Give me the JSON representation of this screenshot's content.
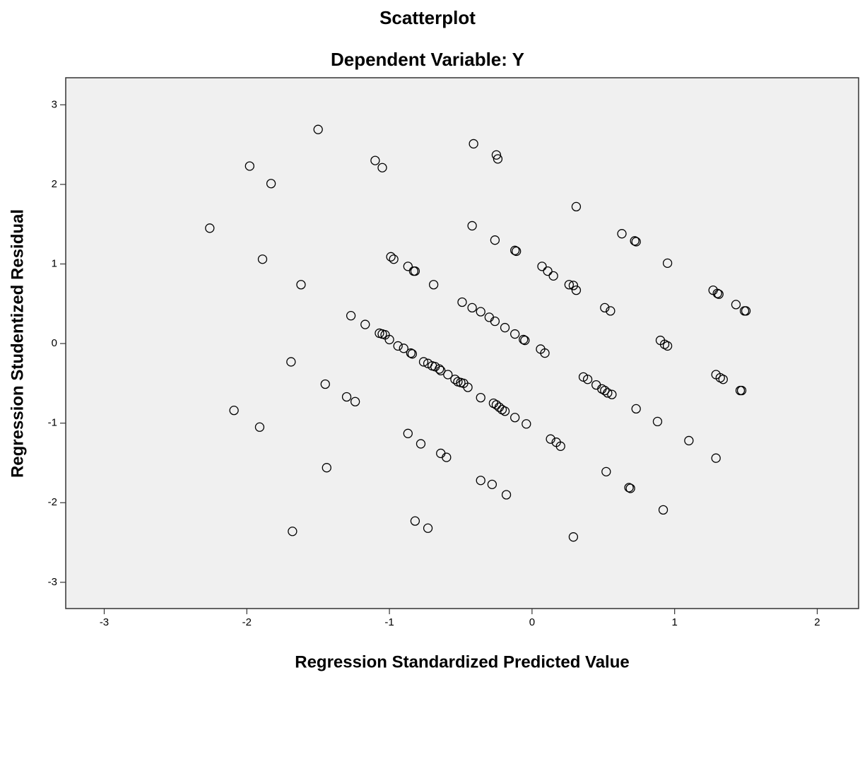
{
  "chart_data": {
    "type": "scatter",
    "title": "Scatterplot",
    "subtitle": "Dependent Variable: Y",
    "x_label": "Regression Standardized Predicted Value",
    "y_label": "Regression Studentized Residual",
    "xlim": [
      -3.27,
      2.29
    ],
    "ylim": [
      -3.33,
      3.34
    ],
    "xticks": [
      -3,
      -2,
      -1,
      0,
      1,
      2
    ],
    "yticks": [
      -3,
      -2,
      -1,
      0,
      1,
      2,
      3
    ],
    "color": "#000000",
    "background": "#f0f0f0",
    "x": [
      -1.5,
      -1.98,
      -1.83,
      -2.26,
      -1.89,
      -1.62,
      -1.1,
      -1.05,
      -0.41,
      -0.25,
      -0.24,
      0.31,
      -0.42,
      -0.26,
      -0.12,
      -0.11,
      0.63,
      0.72,
      0.73,
      0.95,
      -0.99,
      -0.97,
      -0.87,
      -0.83,
      -0.82,
      -0.69,
      0.07,
      0.11,
      0.15,
      0.26,
      0.29,
      0.31,
      0.51,
      0.55,
      1.27,
      1.3,
      1.31,
      1.43,
      1.49,
      1.5,
      -0.49,
      -0.42,
      -0.36,
      -0.3,
      -0.26,
      -0.19,
      -0.12,
      -0.06,
      -0.05,
      0.06,
      0.09,
      0.9,
      0.93,
      0.95,
      -1.27,
      -1.17,
      -1.07,
      -1.05,
      -1.03,
      -1.0,
      -0.94,
      -0.9,
      -0.85,
      -0.84,
      -0.76,
      -0.73,
      -0.7,
      -0.68,
      -0.65,
      -0.64,
      -0.59,
      -0.54,
      -0.52,
      -0.5,
      -0.48,
      -0.45,
      -0.36,
      -0.27,
      -0.25,
      -0.23,
      -0.21,
      -0.19,
      -0.12,
      -0.04,
      0.36,
      0.39,
      0.45,
      0.49,
      0.51,
      0.53,
      0.56,
      0.73,
      0.88,
      1.1,
      1.29,
      1.29,
      1.32,
      1.34,
      1.46,
      1.47,
      -1.69,
      -1.45,
      -1.3,
      -1.24,
      -2.09,
      -1.91,
      -0.87,
      -0.78,
      -0.64,
      -0.6,
      0.13,
      0.17,
      0.2,
      -1.44,
      -0.36,
      -0.28,
      -0.18,
      0.52,
      0.68,
      0.69,
      0.92,
      -1.68,
      -0.82,
      -0.73,
      0.29
    ],
    "values": [
      2.69,
      2.23,
      2.01,
      1.45,
      1.06,
      0.74,
      2.3,
      2.21,
      2.51,
      2.37,
      2.32,
      1.72,
      1.48,
      1.3,
      1.17,
      1.16,
      1.38,
      1.29,
      1.28,
      1.01,
      1.09,
      1.06,
      0.97,
      0.91,
      0.91,
      0.74,
      0.97,
      0.91,
      0.85,
      0.74,
      0.73,
      0.67,
      0.45,
      0.41,
      0.67,
      0.63,
      0.62,
      0.49,
      0.41,
      0.41,
      0.52,
      0.45,
      0.4,
      0.33,
      0.28,
      0.2,
      0.12,
      0.05,
      0.04,
      -0.07,
      -0.12,
      0.04,
      -0.01,
      -0.03,
      0.35,
      0.24,
      0.13,
      0.12,
      0.11,
      0.05,
      -0.03,
      -0.06,
      -0.12,
      -0.13,
      -0.23,
      -0.25,
      -0.28,
      -0.29,
      -0.32,
      -0.34,
      -0.39,
      -0.45,
      -0.48,
      -0.49,
      -0.5,
      -0.55,
      -0.68,
      -0.75,
      -0.77,
      -0.8,
      -0.83,
      -0.85,
      -0.93,
      -1.01,
      -0.42,
      -0.45,
      -0.52,
      -0.57,
      -0.59,
      -0.62,
      -0.64,
      -0.82,
      -0.98,
      -1.22,
      -1.44,
      -0.39,
      -0.43,
      -0.45,
      -0.59,
      -0.59,
      -0.23,
      -0.51,
      -0.67,
      -0.73,
      -0.84,
      -1.05,
      -1.13,
      -1.26,
      -1.38,
      -1.43,
      -1.2,
      -1.24,
      -1.29,
      -1.56,
      -1.72,
      -1.77,
      -1.9,
      -1.61,
      -1.81,
      -1.82,
      -2.09,
      -2.36,
      -2.23,
      -2.32,
      -2.43
    ]
  }
}
